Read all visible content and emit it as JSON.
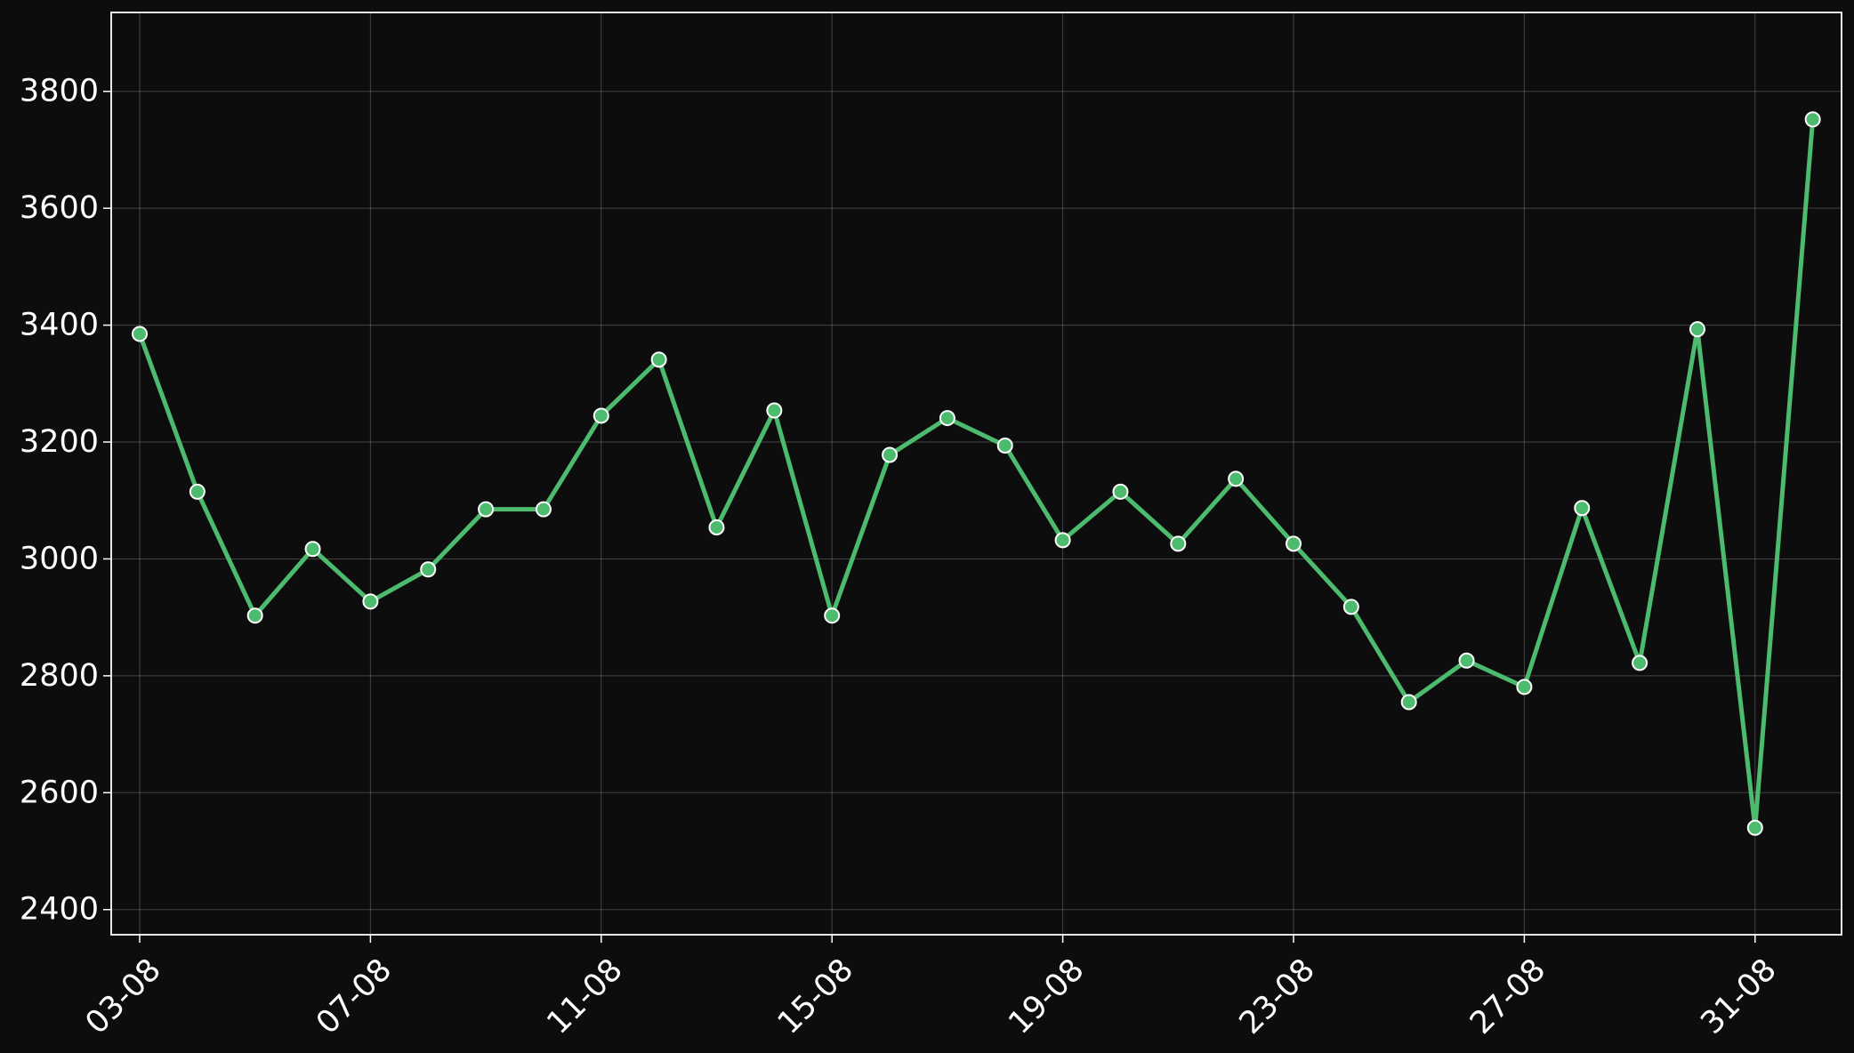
{
  "chart_data": {
    "type": "line",
    "title": "",
    "xlabel": "",
    "ylabel": "",
    "x": [
      "03-08",
      "04-08",
      "05-08",
      "06-08",
      "07-08",
      "08-08",
      "09-08",
      "10-08",
      "11-08",
      "12-08",
      "13-08",
      "14-08",
      "15-08",
      "16-08",
      "17-08",
      "18-08",
      "19-08",
      "20-08",
      "21-08",
      "22-08",
      "23-08",
      "24-08",
      "25-08",
      "26-08",
      "27-08",
      "28-08",
      "29-08",
      "30-08",
      "31-08",
      "01-09"
    ],
    "x_tick_labels": [
      "03-08",
      "07-08",
      "11-08",
      "15-08",
      "19-08",
      "23-08",
      "27-08",
      "31-08"
    ],
    "series": [
      {
        "name": "",
        "values": [
          3385,
          3115,
          2903,
          3017,
          2927,
          2982,
          3085,
          3085,
          3245,
          3341,
          3054,
          3254,
          2903,
          3178,
          3241,
          3194,
          3032,
          3115,
          3026,
          3137,
          3026,
          2918,
          2755,
          2826,
          2781,
          3087,
          2822,
          3393,
          2540,
          3752
        ]
      }
    ],
    "ylim": [
      2357,
      3935
    ],
    "y_ticks": [
      2400,
      2600,
      2800,
      3000,
      3200,
      3400,
      3600,
      3800
    ],
    "grid": true,
    "legend": "none",
    "colors": {
      "background": "#0d0d0d",
      "line": "#4cbb6e",
      "marker_fill": "#4cbb6e",
      "marker_edge": "#ffffff",
      "axis": "#ffffff",
      "grid": "#ffffff",
      "text": "#ffffff"
    }
  }
}
